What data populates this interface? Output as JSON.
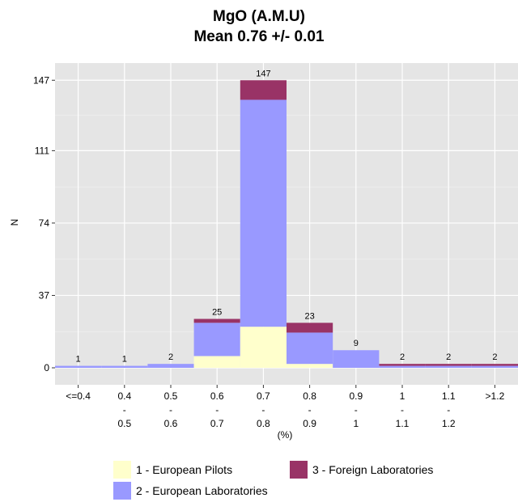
{
  "chart_data": {
    "type": "bar",
    "stacked": true,
    "title": "MgO (A.M.U)",
    "subtitle": "Mean 0.76 +/- 0.01",
    "xlabel": "(%)",
    "ylabel": "N",
    "ylim": [
      0,
      150
    ],
    "yticks": [
      0,
      37,
      74,
      111,
      147
    ],
    "grid": true,
    "legend_position": "bottom",
    "categories": [
      [
        "<=0.4"
      ],
      [
        "0.4",
        "-",
        "0.5"
      ],
      [
        "0.5",
        "-",
        "0.6"
      ],
      [
        "0.6",
        "-",
        "0.7"
      ],
      [
        "0.7",
        "-",
        "0.8"
      ],
      [
        "0.8",
        "-",
        "0.9"
      ],
      [
        "0.9",
        "-",
        "1"
      ],
      [
        "1",
        "-",
        "1.1"
      ],
      [
        "1.1",
        "-",
        "1.2"
      ],
      [
        ">1.2"
      ]
    ],
    "totals": [
      1,
      1,
      2,
      25,
      147,
      23,
      9,
      2,
      2,
      2
    ],
    "series": [
      {
        "name": "1 - European Pilots",
        "color": "#FFFFCC",
        "values": [
          0,
          0,
          0,
          6,
          21,
          2,
          0,
          0,
          0,
          0
        ]
      },
      {
        "name": "2 - European Laboratories",
        "color": "#9999FF",
        "values": [
          1,
          1,
          2,
          17,
          116,
          16,
          9,
          1,
          1,
          1
        ]
      },
      {
        "name": "3 - Foreign Laboratories",
        "color": "#993366",
        "values": [
          0,
          0,
          0,
          2,
          10,
          5,
          0,
          1,
          1,
          1
        ]
      }
    ]
  }
}
